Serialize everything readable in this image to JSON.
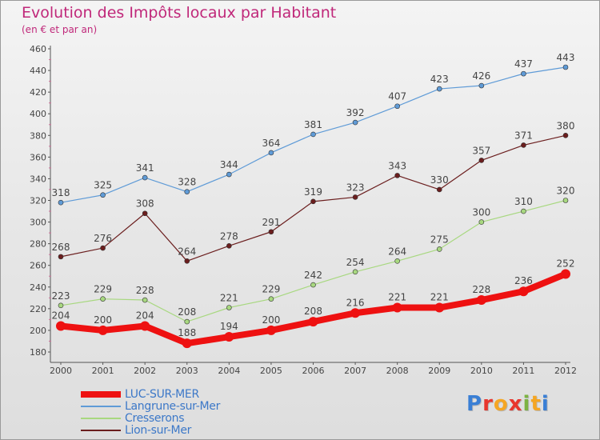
{
  "header": {
    "title": "Evolution des Impôts locaux par Habitant",
    "subtitle": "(en € et par an)"
  },
  "brand": {
    "text": "Proxiti"
  },
  "colors": {
    "title": "#c0287a",
    "legend_text": "#3c78c8",
    "axis": "#555555",
    "brand_letters": [
      "#3a7fd5",
      "#e8362d",
      "#f5a623",
      "#e8362d",
      "#7cb342",
      "#f5a623",
      "#3a7fd5"
    ]
  },
  "chart_data": {
    "type": "line",
    "title": "Evolution des Impôts locaux par Habitant",
    "subtitle": "(en € et par an)",
    "xlabel": "",
    "ylabel": "",
    "x": [
      "2000",
      "2001",
      "2002",
      "2003",
      "2004",
      "2005",
      "2006",
      "2007",
      "2008",
      "2009",
      "2010",
      "2011",
      "2012"
    ],
    "ylim": [
      180,
      460
    ],
    "yticks": [
      180,
      200,
      220,
      240,
      260,
      280,
      300,
      320,
      340,
      360,
      380,
      400,
      420,
      440,
      460
    ],
    "grid": false,
    "legend": "bottom-left",
    "series": [
      {
        "name": "LUC-SUR-MER",
        "color": "#ee1111",
        "values": [
          204,
          200,
          204,
          188,
          194,
          200,
          208,
          216,
          221,
          221,
          228,
          236,
          252
        ]
      },
      {
        "name": "Langrune-sur-Mer",
        "color": "#5f9bd7",
        "values": [
          318,
          325,
          341,
          328,
          344,
          364,
          381,
          392,
          407,
          423,
          426,
          437,
          443
        ]
      },
      {
        "name": "Cresserons",
        "color": "#a8d880",
        "values": [
          223,
          229,
          228,
          208,
          221,
          229,
          242,
          254,
          264,
          275,
          300,
          310,
          320
        ]
      },
      {
        "name": "Lion-sur-Mer",
        "color": "#6b1e1e",
        "values": [
          268,
          276,
          308,
          264,
          278,
          291,
          319,
          323,
          343,
          330,
          357,
          371,
          380
        ]
      }
    ]
  }
}
